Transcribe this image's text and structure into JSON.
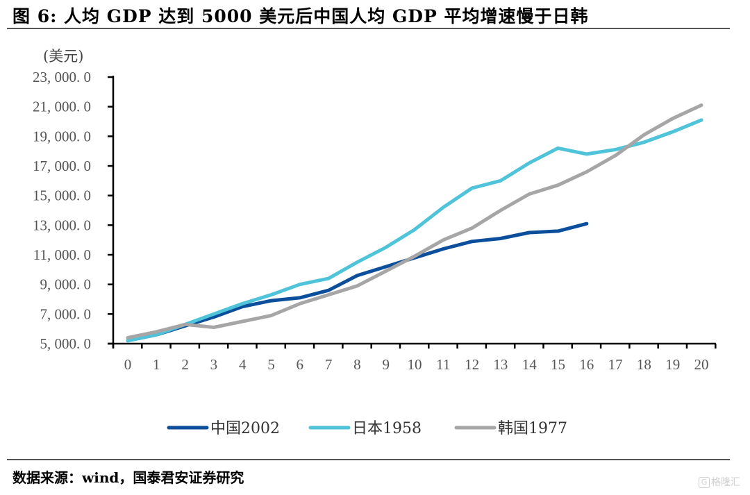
{
  "figure": {
    "title": "图 6:    人均 GDP 达到 5000 美元后中国人均 GDP 平均增速慢于日韩",
    "source": "数据来源：wind，国泰君安证券研究",
    "watermark": "格隆汇",
    "watermark_icon": "G"
  },
  "chart_data": {
    "type": "line",
    "title": "人均 GDP 达到 5000 美元后中国人均 GDP 平均增速慢于日韩",
    "xlabel": "",
    "ylabel": "(美元)",
    "x": [
      0,
      1,
      2,
      3,
      4,
      5,
      6,
      7,
      8,
      9,
      10,
      11,
      12,
      13,
      14,
      15,
      16,
      17,
      18,
      19,
      20
    ],
    "x_tick_labels": [
      "0",
      "1",
      "2",
      "3",
      "4",
      "5",
      "6",
      "7",
      "8",
      "9",
      "10",
      "11",
      "12",
      "13",
      "14",
      "15",
      "16",
      "17",
      "18",
      "19",
      "20"
    ],
    "ylim": [
      5000,
      23000
    ],
    "y_ticks": [
      5000,
      7000,
      9000,
      11000,
      13000,
      15000,
      17000,
      19000,
      21000,
      23000
    ],
    "y_tick_labels": [
      "5, 000. 0",
      "7, 000. 0",
      "9, 000. 0",
      "11, 000. 0",
      "13, 000. 0",
      "15, 000. 0",
      "17, 000. 0",
      "19, 000. 0",
      "21, 000. 0",
      "23, 000. 0"
    ],
    "grid": false,
    "legend_position": "bottom",
    "series": [
      {
        "name": "中国2002",
        "color": "#0b4f9c",
        "values": [
          5200,
          5600,
          6200,
          6800,
          7500,
          7900,
          8100,
          8600,
          9600,
          10200,
          10800,
          11400,
          11900,
          12100,
          12500,
          12600,
          13100
        ]
      },
      {
        "name": "日本1958",
        "color": "#4fc3d9",
        "values": [
          5200,
          5600,
          6300,
          7000,
          7700,
          8300,
          9000,
          9400,
          10500,
          11500,
          12700,
          14200,
          15500,
          16000,
          17200,
          18200,
          17800,
          18100,
          18600,
          19300,
          20100
        ]
      },
      {
        "name": "韩国1977",
        "color": "#a6a6a6",
        "values": [
          5400,
          5800,
          6300,
          6100,
          6500,
          6900,
          7700,
          8300,
          8900,
          9900,
          10900,
          12000,
          12800,
          14000,
          15100,
          15700,
          16600,
          17700,
          19100,
          20200,
          21100
        ]
      }
    ]
  }
}
